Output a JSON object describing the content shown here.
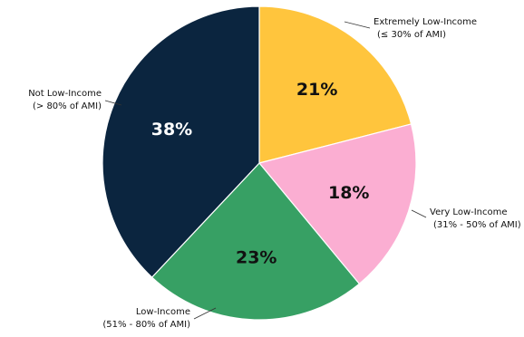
{
  "chart_data": {
    "type": "pie",
    "title": "",
    "start_angle_deg": 0,
    "direction": "clockwise",
    "slices": [
      {
        "label": "Extremely Low-Income",
        "sublabel": "(≤ 30% of AMI)",
        "value": 21,
        "value_label": "21%",
        "color": "#FFC53D",
        "value_text_color": "#111111"
      },
      {
        "label": "Very Low-Income",
        "sublabel": "(31% - 50% of AMI)",
        "value": 18,
        "value_label": "18%",
        "color": "#FBAED2",
        "value_text_color": "#111111"
      },
      {
        "label": "Low-Income",
        "sublabel": "(51% - 80% of AMI)",
        "value": 23,
        "value_label": "23%",
        "color": "#37A064",
        "value_text_color": "#111111"
      },
      {
        "label": "Not Low-Income",
        "sublabel": "(> 80% of AMI)",
        "value": 38,
        "value_label": "38%",
        "color": "#0B253F",
        "value_text_color": "#ffffff"
      }
    ]
  }
}
